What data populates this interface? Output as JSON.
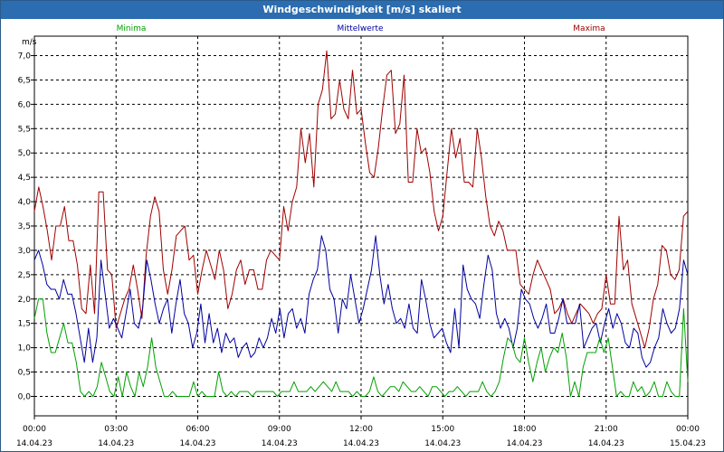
{
  "window": {
    "title": "Windgeschwindigkeit [m/s] skaliert"
  },
  "chart_data": {
    "type": "line",
    "title": "Windgeschwindigkeit [m/s] skaliert",
    "ylabel": "m/s",
    "ylim": [
      -0.4,
      7.4
    ],
    "xlim": [
      0,
      24
    ],
    "grid": true,
    "y_ticks": [
      "0,0",
      "0,5",
      "1,0",
      "1,5",
      "2,0",
      "2,5",
      "3,0",
      "3,5",
      "4,0",
      "4,5",
      "5,0",
      "5,5",
      "6,0",
      "6,5",
      "7,0"
    ],
    "y_tick_values": [
      0,
      0.5,
      1,
      1.5,
      2,
      2.5,
      3,
      3.5,
      4,
      4.5,
      5,
      5.5,
      6,
      6.5,
      7
    ],
    "x_ticks": [
      {
        "time": "00:00",
        "date": "14.04.23"
      },
      {
        "time": "03:00",
        "date": "14.04.23"
      },
      {
        "time": "06:00",
        "date": "14.04.23"
      },
      {
        "time": "09:00",
        "date": "14.04.23"
      },
      {
        "time": "12:00",
        "date": "14.04.23"
      },
      {
        "time": "15:00",
        "date": "14.04.23"
      },
      {
        "time": "18:00",
        "date": "14.04.23"
      },
      {
        "time": "21:00",
        "date": "14.04.23"
      },
      {
        "time": "00:00",
        "date": "15.04.23"
      }
    ],
    "legend": [
      "Minima",
      "Mittelwerte",
      "Maxima"
    ],
    "legend_placement": "top",
    "series": [
      {
        "name": "Maxima",
        "color": "#a00000",
        "values": [
          3.8,
          4.3,
          3.9,
          3.4,
          2.8,
          3.5,
          3.5,
          3.9,
          3.2,
          3.2,
          2.7,
          1.8,
          1.7,
          2.7,
          1.7,
          4.2,
          4.2,
          2.6,
          2.5,
          1.4,
          1.7,
          2.0,
          2.2,
          2.7,
          2.2,
          1.6,
          2.9,
          3.7,
          4.1,
          3.8,
          2.6,
          2.1,
          2.6,
          3.3,
          3.4,
          3.5,
          2.8,
          2.9,
          2.1,
          2.6,
          3.0,
          2.7,
          2.4,
          3.0,
          2.6,
          1.8,
          2.1,
          2.6,
          2.8,
          2.3,
          2.6,
          2.6,
          2.2,
          2.2,
          2.8,
          3.0,
          2.9,
          2.8,
          3.9,
          3.4,
          4.0,
          4.3,
          5.5,
          4.8,
          5.4,
          4.3,
          6.0,
          6.3,
          7.1,
          5.7,
          5.8,
          6.5,
          5.9,
          5.7,
          6.7,
          5.8,
          5.9,
          5.2,
          4.6,
          4.5,
          5.1,
          5.9,
          6.6,
          6.7,
          5.4,
          5.6,
          6.6,
          4.4,
          4.4,
          5.5,
          5.0,
          5.1,
          4.6,
          3.8,
          3.4,
          3.7,
          4.6,
          5.5,
          4.9,
          5.3,
          4.4,
          4.4,
          4.3,
          5.5,
          4.9,
          4.1,
          3.5,
          3.3,
          3.6,
          3.4,
          3.0,
          3.0,
          3.0,
          2.3,
          2.2,
          2.1,
          2.5,
          2.8,
          2.6,
          2.4,
          2.2,
          1.7,
          1.8,
          2.0,
          1.7,
          1.5,
          1.7,
          1.9,
          1.8,
          1.7,
          1.5,
          1.7,
          1.8,
          2.5,
          1.9,
          1.9,
          3.7,
          2.6,
          2.8,
          1.9,
          1.6,
          1.3,
          1.0,
          1.4,
          2.0,
          2.3,
          3.1,
          3.0,
          2.5,
          2.4,
          2.6,
          3.7,
          3.8
        ]
      },
      {
        "name": "Mittelwerte",
        "color": "#0000a0",
        "values": [
          2.8,
          3.0,
          2.7,
          2.3,
          2.2,
          2.2,
          2.0,
          2.4,
          2.1,
          2.1,
          1.7,
          1.2,
          0.7,
          1.4,
          0.7,
          1.2,
          2.8,
          2.1,
          1.4,
          1.6,
          1.4,
          1.2,
          1.7,
          2.2,
          1.5,
          1.4,
          1.8,
          2.8,
          2.4,
          1.9,
          1.5,
          1.8,
          2.0,
          1.3,
          1.9,
          2.4,
          1.7,
          1.5,
          1.0,
          1.3,
          1.9,
          1.1,
          1.7,
          1.1,
          1.4,
          0.9,
          1.3,
          1.1,
          1.2,
          0.8,
          1.0,
          1.1,
          0.8,
          0.9,
          1.2,
          1.0,
          1.2,
          1.6,
          1.3,
          1.8,
          1.2,
          1.7,
          1.8,
          1.4,
          1.6,
          1.3,
          2.1,
          2.4,
          2.6,
          3.3,
          3.0,
          2.2,
          2.0,
          1.3,
          2.0,
          1.8,
          2.5,
          2.0,
          1.5,
          1.8,
          2.2,
          2.6,
          3.3,
          2.5,
          1.9,
          2.3,
          1.8,
          1.5,
          1.6,
          1.4,
          1.9,
          1.4,
          1.3,
          2.4,
          2.0,
          1.5,
          1.2,
          1.3,
          1.4,
          1.1,
          0.9,
          1.8,
          1.0,
          2.7,
          2.2,
          2.0,
          1.9,
          1.6,
          2.3,
          2.9,
          2.6,
          1.7,
          1.4,
          1.6,
          1.4,
          1.0,
          1.4,
          2.2,
          2.0,
          1.9,
          1.6,
          1.4,
          1.6,
          1.9,
          1.3,
          1.3,
          1.6,
          2.0,
          1.5,
          1.5,
          1.5,
          1.9,
          1.0,
          1.2,
          1.4,
          1.5,
          1.1,
          1.5,
          1.8,
          1.4,
          1.7,
          1.5,
          1.1,
          1.0,
          1.4,
          1.3,
          0.8,
          0.6,
          0.7,
          1.0,
          1.2,
          1.8,
          1.5,
          1.3,
          1.4,
          1.8,
          2.8,
          2.5
        ]
      },
      {
        "name": "Minima",
        "color": "#00a000",
        "values": [
          1.6,
          2.0,
          2.0,
          1.3,
          0.9,
          0.9,
          1.2,
          1.5,
          1.1,
          1.1,
          0.7,
          0.1,
          0.0,
          0.1,
          0.0,
          0.2,
          0.7,
          0.4,
          0.1,
          0.0,
          0.4,
          0.0,
          0.5,
          0.2,
          0.0,
          0.5,
          0.2,
          0.6,
          1.2,
          0.6,
          0.3,
          0.0,
          0.0,
          0.1,
          0.0,
          0.0,
          0.0,
          0.0,
          0.3,
          0.0,
          0.1,
          0.0,
          0.0,
          0.0,
          0.5,
          0.1,
          0.0,
          0.1,
          0.0,
          0.1,
          0.1,
          0.1,
          0.0,
          0.1,
          0.1,
          0.1,
          0.1,
          0.1,
          0.0,
          0.1,
          0.1,
          0.1,
          0.3,
          0.1,
          0.1,
          0.1,
          0.2,
          0.1,
          0.2,
          0.3,
          0.2,
          0.1,
          0.3,
          0.1,
          0.1,
          0.1,
          0.0,
          0.1,
          0.0,
          0.0,
          0.1,
          0.4,
          0.1,
          0.0,
          0.1,
          0.2,
          0.2,
          0.1,
          0.3,
          0.2,
          0.1,
          0.1,
          0.2,
          0.1,
          0.0,
          0.2,
          0.2,
          0.1,
          0.0,
          0.1,
          0.1,
          0.2,
          0.1,
          0.0,
          0.1,
          0.1,
          0.1,
          0.3,
          0.1,
          0.0,
          0.1,
          0.3,
          0.8,
          1.2,
          1.1,
          0.8,
          0.7,
          1.2,
          0.7,
          0.3,
          0.7,
          1.0,
          0.5,
          0.8,
          1.0,
          0.9,
          1.3,
          0.8,
          0.0,
          0.3,
          0.0,
          0.6,
          0.9,
          0.9,
          0.9,
          1.2,
          0.9,
          1.2,
          0.6,
          0.0,
          0.1,
          0.0,
          0.0,
          0.3,
          0.1,
          0.2,
          0.0,
          0.1,
          0.3,
          0.0,
          0.0,
          0.3,
          0.1,
          0.0,
          0.0,
          1.8,
          0.3
        ]
      }
    ]
  }
}
